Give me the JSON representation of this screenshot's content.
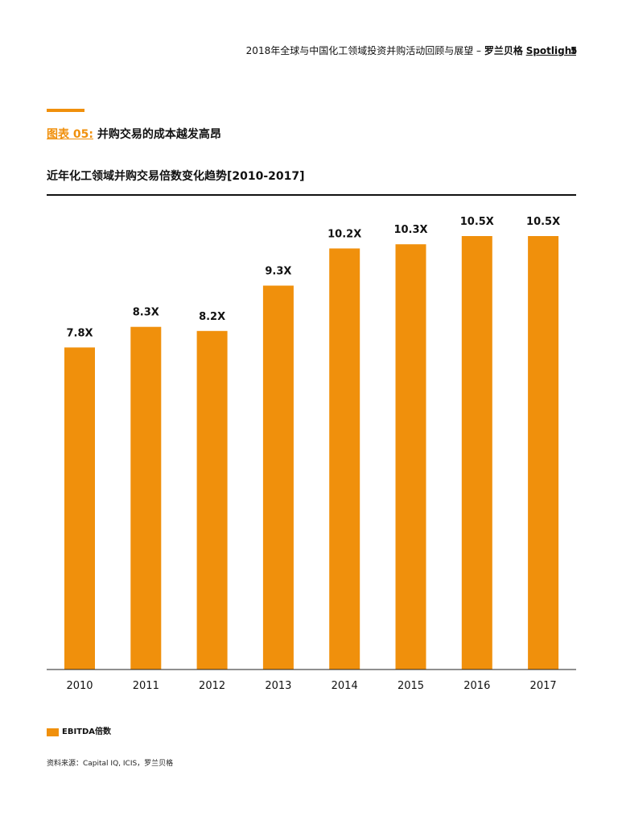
{
  "header": {
    "report_title": "2018年全球与中国化工领域投资并购活动回顾与展望 – ",
    "brand": "罗兰贝格",
    "spotlight": "Spotlight",
    "page_number": "5"
  },
  "figure": {
    "label": "图表 05:",
    "caption": "并购交易的成本越发高昂"
  },
  "colors": {
    "accent": "#f0900c",
    "bar": "#f0900c",
    "text": "#111111"
  },
  "chart_data": {
    "type": "bar",
    "title": "近年化工领域并购交易倍数变化趋势[2010-2017]",
    "categories": [
      "2010",
      "2011",
      "2012",
      "2013",
      "2014",
      "2015",
      "2016",
      "2017"
    ],
    "values": [
      7.8,
      8.3,
      8.2,
      9.3,
      10.2,
      10.3,
      10.5,
      10.5
    ],
    "value_labels": [
      "7.8X",
      "8.3X",
      "8.2X",
      "9.3X",
      "10.2X",
      "10.3X",
      "10.5X",
      "10.5X"
    ],
    "series_name": "EBITDA倍数",
    "ylim": [
      0,
      10.5
    ],
    "xlabel": "",
    "ylabel": "",
    "grid": false,
    "legend_position": "bottom-left"
  },
  "footer": {
    "source": "资料来源：Capital IQ, ICIS，罗兰贝格"
  }
}
